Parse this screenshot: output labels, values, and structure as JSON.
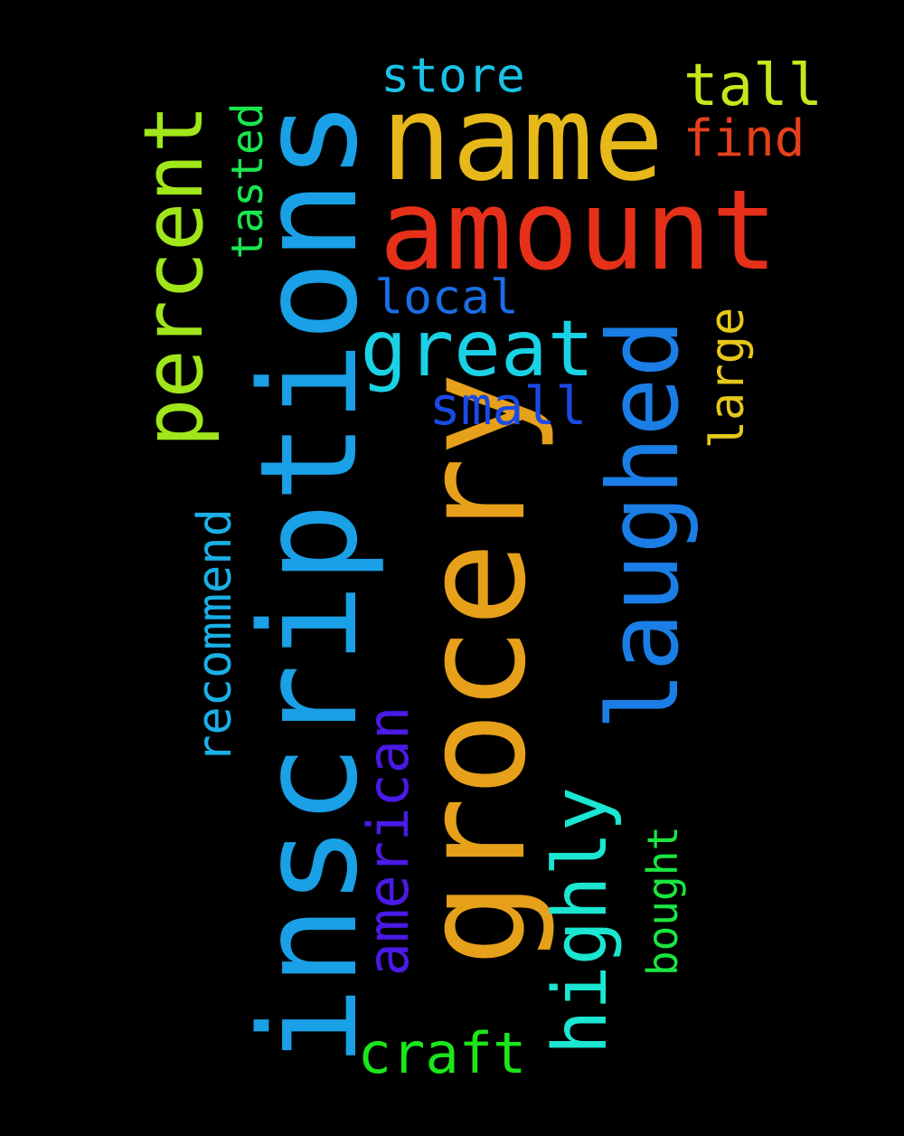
{
  "word_cloud": {
    "background": "#000000",
    "words": [
      {
        "key": "inscriptions",
        "text": "inscriptions",
        "color": "#1aa0e6",
        "orientation": "vertical"
      },
      {
        "key": "grocery",
        "text": "grocery",
        "color": "#e6a01a",
        "orientation": "vertical"
      },
      {
        "key": "name",
        "text": "name",
        "color": "#e6b81a",
        "orientation": "horizontal"
      },
      {
        "key": "amount",
        "text": "amount",
        "color": "#e6301a",
        "orientation": "horizontal"
      },
      {
        "key": "laughed",
        "text": "laughed",
        "color": "#1a7ee6",
        "orientation": "vertical"
      },
      {
        "key": "percent",
        "text": "percent",
        "color": "#a0e61a",
        "orientation": "vertical"
      },
      {
        "key": "great",
        "text": "great",
        "color": "#1ad2e6",
        "orientation": "horizontal"
      },
      {
        "key": "highly",
        "text": "highly",
        "color": "#1ae6d2",
        "orientation": "vertical"
      },
      {
        "key": "american",
        "text": "american",
        "color": "#4a1ae6",
        "orientation": "vertical"
      },
      {
        "key": "recommend",
        "text": "recommend",
        "color": "#1ab0e6",
        "orientation": "vertical"
      },
      {
        "key": "large",
        "text": "large",
        "color": "#e6c81a",
        "orientation": "vertical"
      },
      {
        "key": "tasted",
        "text": "tasted",
        "color": "#1ae650",
        "orientation": "vertical"
      },
      {
        "key": "craft",
        "text": "craft",
        "color": "#1ae61a",
        "orientation": "horizontal"
      },
      {
        "key": "small",
        "text": "small",
        "color": "#1a4ae6",
        "orientation": "horizontal"
      },
      {
        "key": "local",
        "text": "local",
        "color": "#1a6ee6",
        "orientation": "horizontal"
      },
      {
        "key": "store",
        "text": "store",
        "color": "#1ac2e6",
        "orientation": "horizontal"
      },
      {
        "key": "tall",
        "text": "tall",
        "color": "#c8e61a",
        "orientation": "horizontal"
      },
      {
        "key": "find",
        "text": "find",
        "color": "#e6401a",
        "orientation": "horizontal"
      },
      {
        "key": "bought",
        "text": "bought",
        "color": "#1ae640",
        "orientation": "vertical"
      }
    ]
  }
}
